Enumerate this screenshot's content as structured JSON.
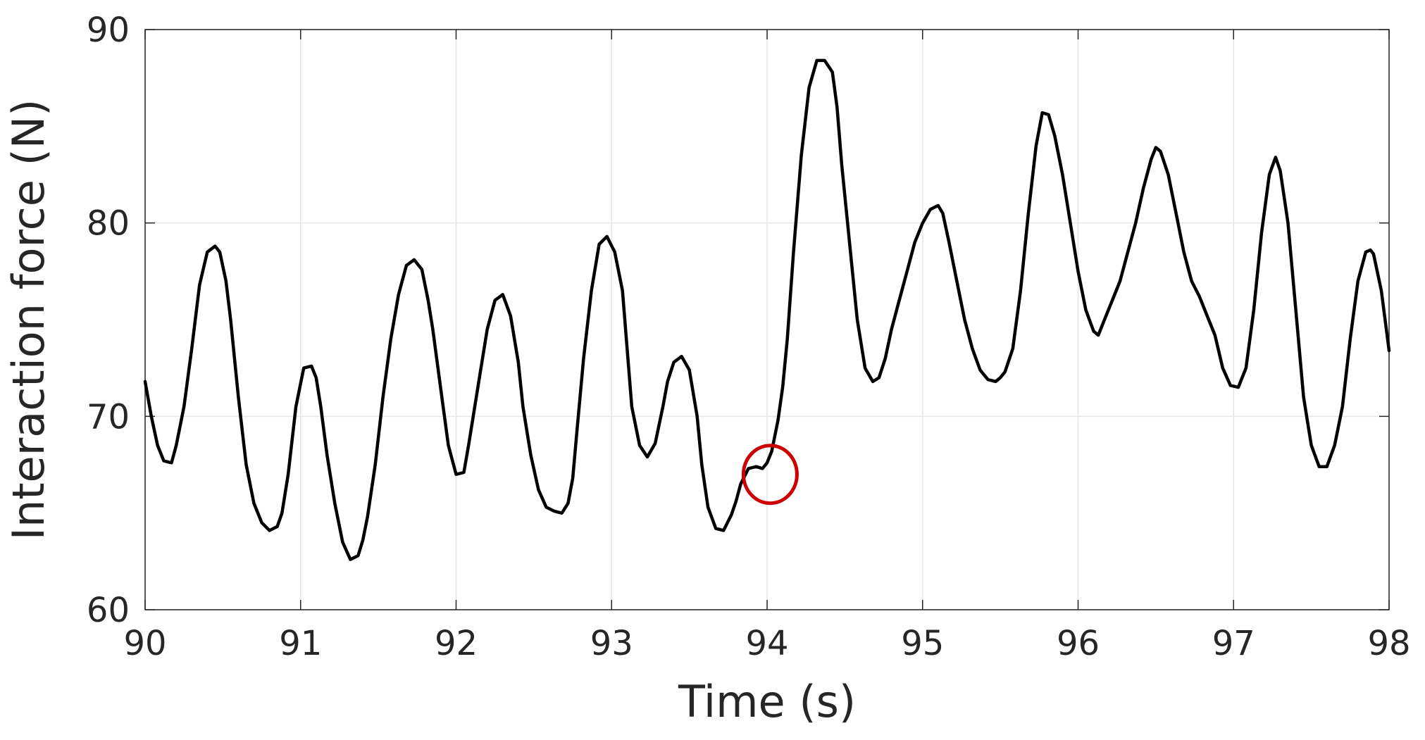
{
  "chart_data": {
    "type": "line",
    "title": "",
    "xlabel": "Time (s)",
    "ylabel": "Interaction force (N)",
    "xlim": [
      90,
      98
    ],
    "ylim": [
      60,
      90
    ],
    "xticks": [
      90,
      91,
      92,
      93,
      94,
      95,
      96,
      97,
      98
    ],
    "yticks": [
      60,
      70,
      80,
      90
    ],
    "grid": true,
    "colors": {
      "line": "#000000",
      "annotation": "#cc0000",
      "axis": "#262626",
      "grid": "#e6e6e6"
    },
    "series": [
      {
        "x": [
          90.0,
          90.04,
          90.08,
          90.12,
          90.17,
          90.2,
          90.25,
          90.3,
          90.35,
          90.4,
          90.45,
          90.48,
          90.52,
          90.55,
          90.6,
          90.65,
          90.7,
          90.75,
          90.8,
          90.85,
          90.88,
          90.92,
          90.97,
          91.02,
          91.07,
          91.1,
          91.13,
          91.17,
          91.22,
          91.27,
          91.32,
          91.37,
          91.4,
          91.43,
          91.48,
          91.53,
          91.58,
          91.63,
          91.68,
          91.73,
          91.78,
          91.82,
          91.85,
          91.9,
          91.95,
          92.0,
          92.05,
          92.08,
          92.1,
          92.15,
          92.2,
          92.25,
          92.3,
          92.35,
          92.4,
          92.43,
          92.48,
          92.53,
          92.58,
          92.63,
          92.68,
          92.72,
          92.75,
          92.78,
          92.82,
          92.87,
          92.92,
          92.97,
          93.02,
          93.07,
          93.1,
          93.13,
          93.18,
          93.23,
          93.28,
          93.33,
          93.36,
          93.4,
          93.45,
          93.5,
          93.55,
          93.58,
          93.62,
          93.67,
          93.72,
          93.77,
          93.8,
          93.83,
          93.88,
          93.93,
          93.97,
          94.0,
          94.03,
          94.07,
          94.1,
          94.13,
          94.17,
          94.22,
          94.27,
          94.32,
          94.37,
          94.42,
          94.45,
          94.48,
          94.53,
          94.58,
          94.63,
          94.68,
          94.72,
          94.76,
          94.8,
          94.85,
          94.9,
          94.95,
          95.0,
          95.05,
          95.1,
          95.13,
          95.17,
          95.22,
          95.27,
          95.32,
          95.37,
          95.42,
          95.47,
          95.5,
          95.53,
          95.58,
          95.63,
          95.68,
          95.73,
          95.77,
          95.81,
          95.85,
          95.9,
          95.95,
          96.0,
          96.05,
          96.1,
          96.13,
          96.17,
          96.22,
          96.27,
          96.32,
          96.37,
          96.42,
          96.47,
          96.5,
          96.53,
          96.58,
          96.63,
          96.68,
          96.73,
          96.78,
          96.83,
          96.88,
          96.93,
          96.98,
          97.03,
          97.08,
          97.13,
          97.18,
          97.23,
          97.27,
          97.3,
          97.35,
          97.4,
          97.45,
          97.5,
          97.55,
          97.6,
          97.65,
          97.7,
          97.75,
          97.8,
          97.85,
          97.88,
          97.9,
          97.95,
          98.0
        ],
        "y": [
          71.8,
          70.0,
          68.5,
          67.7,
          67.6,
          68.5,
          70.5,
          73.5,
          76.8,
          78.5,
          78.8,
          78.5,
          77.0,
          75.0,
          71.0,
          67.5,
          65.5,
          64.5,
          64.1,
          64.3,
          65.0,
          67.0,
          70.5,
          72.5,
          72.6,
          72.0,
          70.5,
          68.0,
          65.5,
          63.5,
          62.6,
          62.8,
          63.6,
          64.8,
          67.5,
          71.0,
          74.0,
          76.3,
          77.8,
          78.1,
          77.6,
          76.0,
          74.5,
          71.5,
          68.5,
          67.0,
          67.1,
          68.5,
          69.5,
          72.0,
          74.5,
          76.0,
          76.3,
          75.2,
          72.8,
          70.5,
          68.0,
          66.2,
          65.3,
          65.1,
          65.0,
          65.5,
          66.8,
          69.5,
          73.0,
          76.5,
          78.9,
          79.3,
          78.5,
          76.5,
          73.5,
          70.5,
          68.5,
          67.9,
          68.6,
          70.5,
          71.8,
          72.8,
          73.1,
          72.4,
          70.0,
          67.5,
          65.3,
          64.2,
          64.1,
          64.9,
          65.6,
          66.5,
          67.3,
          67.4,
          67.3,
          67.6,
          68.2,
          69.8,
          71.5,
          74.0,
          78.5,
          83.5,
          87.0,
          88.4,
          88.4,
          87.8,
          86.0,
          83.0,
          79.0,
          75.0,
          72.5,
          71.8,
          72.0,
          73.0,
          74.5,
          76.0,
          77.5,
          79.0,
          80.0,
          80.7,
          80.9,
          80.5,
          79.0,
          77.0,
          75.0,
          73.5,
          72.4,
          71.9,
          71.8,
          72.0,
          72.3,
          73.5,
          76.5,
          80.5,
          84.0,
          85.7,
          85.6,
          84.5,
          82.5,
          80.0,
          77.5,
          75.5,
          74.4,
          74.2,
          75.0,
          76.0,
          77.0,
          78.5,
          80.0,
          81.8,
          83.3,
          83.9,
          83.7,
          82.5,
          80.5,
          78.5,
          77.0,
          76.2,
          75.2,
          74.2,
          72.5,
          71.6,
          71.5,
          72.5,
          75.5,
          79.5,
          82.5,
          83.4,
          82.7,
          80.0,
          75.5,
          71.0,
          68.5,
          67.4,
          67.4,
          68.5,
          70.5,
          74.0,
          77.0,
          78.5,
          78.6,
          78.4,
          76.5,
          73.4
        ]
      }
    ],
    "annotations": [
      {
        "type": "ellipse",
        "x": 94.02,
        "y": 67.0
      }
    ]
  }
}
